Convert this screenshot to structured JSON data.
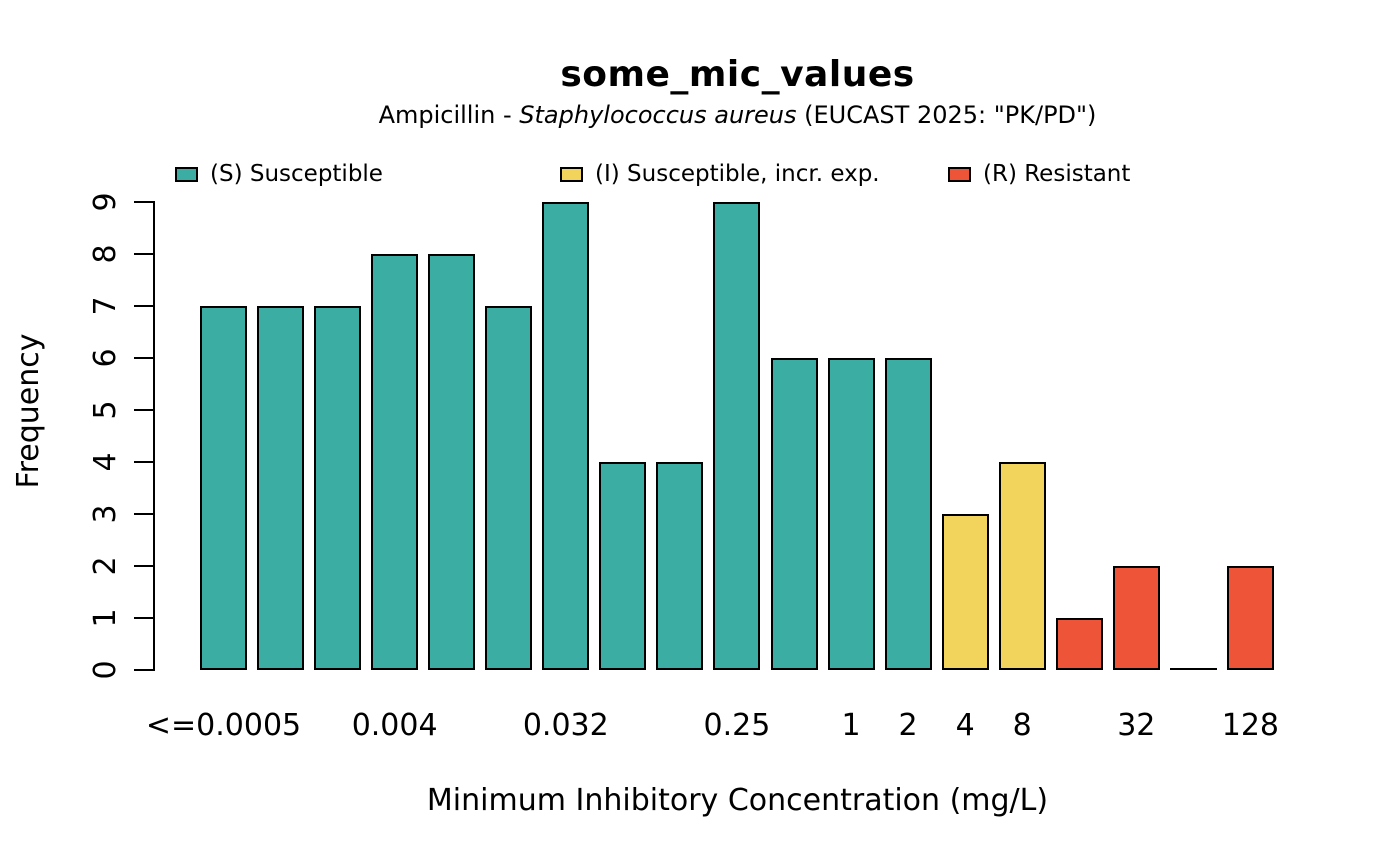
{
  "figure": {
    "title": "some_mic_values",
    "subtitle_prefix": "Ampicillin - ",
    "subtitle_italic": "Staphylococcus aureus",
    "subtitle_suffix": " (EUCAST 2025: \"PK/PD\")"
  },
  "legend": {
    "items": [
      {
        "key": "S",
        "label": "(S) Susceptible",
        "color": "#3CADA3"
      },
      {
        "key": "I",
        "label": "(I) Susceptible, incr. exp.",
        "color": "#F2D35C"
      },
      {
        "key": "R",
        "label": "(R) Resistant",
        "color": "#EE5437"
      }
    ]
  },
  "chart_data": {
    "type": "bar",
    "title": "some_mic_values",
    "subtitle": "Ampicillin - Staphylococcus aureus (EUCAST 2025: \"PK/PD\")",
    "xlabel": "Minimum Inhibitory Concentration (mg/L)",
    "ylabel": "Frequency",
    "ylim": [
      0,
      9
    ],
    "y_ticks": [
      0,
      1,
      2,
      3,
      4,
      5,
      6,
      7,
      8,
      9
    ],
    "grid": false,
    "legend_position": "top",
    "colors": {
      "S": "#3CADA3",
      "I": "#F2D35C",
      "R": "#EE5437"
    },
    "bars": [
      {
        "value": 7,
        "sir": "S"
      },
      {
        "value": 7,
        "sir": "S"
      },
      {
        "value": 7,
        "sir": "S"
      },
      {
        "value": 8,
        "sir": "S"
      },
      {
        "value": 8,
        "sir": "S"
      },
      {
        "value": 7,
        "sir": "S"
      },
      {
        "value": 9,
        "sir": "S"
      },
      {
        "value": 4,
        "sir": "S"
      },
      {
        "value": 4,
        "sir": "S"
      },
      {
        "value": 9,
        "sir": "S"
      },
      {
        "value": 6,
        "sir": "S"
      },
      {
        "value": 6,
        "sir": "S"
      },
      {
        "value": 6,
        "sir": "S"
      },
      {
        "value": 3,
        "sir": "I"
      },
      {
        "value": 4,
        "sir": "I"
      },
      {
        "value": 1,
        "sir": "R"
      },
      {
        "value": 2,
        "sir": "R"
      },
      {
        "value": 0,
        "sir": "R"
      },
      {
        "value": 2,
        "sir": "R"
      }
    ],
    "x_tick_labels": [
      {
        "bar_index": 0,
        "label": "<=0.0005"
      },
      {
        "bar_index": 3,
        "label": "0.004"
      },
      {
        "bar_index": 6,
        "label": "0.032"
      },
      {
        "bar_index": 9,
        "label": "0.25"
      },
      {
        "bar_index": 11,
        "label": "1"
      },
      {
        "bar_index": 12,
        "label": "2"
      },
      {
        "bar_index": 13,
        "label": "4"
      },
      {
        "bar_index": 14,
        "label": "8"
      },
      {
        "bar_index": 16,
        "label": "32"
      },
      {
        "bar_index": 18,
        "label": "128"
      }
    ]
  }
}
